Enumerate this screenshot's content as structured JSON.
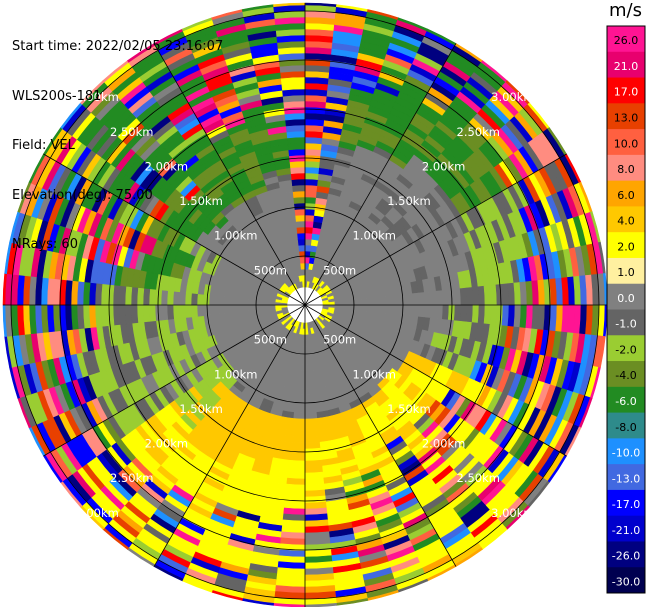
{
  "meta": {
    "start_time": "Start time: 2022/02/05 23:16:07",
    "instrument": "WLS200s-181",
    "field": "Field: VEL",
    "elevation": "Elevation(deg): 75.00",
    "nrays": "NRays: 60"
  },
  "colorbar": {
    "unit": "m/s",
    "ticks": [
      "26.0",
      "21.0",
      "17.0",
      "13.0",
      "10.0",
      "8.0",
      "6.0",
      "4.0",
      "2.0",
      "1.0",
      "0.0",
      "-1.0",
      "-2.0",
      "-4.0",
      "-6.0",
      "-8.0",
      "-10.0",
      "-13.0",
      "-17.0",
      "-21.0",
      "-26.0",
      "-30.0"
    ],
    "colors": [
      "#ff1493",
      "#e8006e",
      "#ff0000",
      "#e84000",
      "#ff6040",
      "#ff8c80",
      "#ffa500",
      "#ffc800",
      "#ffff00",
      "#fff0a0",
      "#808080",
      "#646464",
      "#9acd32",
      "#6b8e23",
      "#228b22",
      "#2e8b8b",
      "#1e90ff",
      "#4169e1",
      "#0000ff",
      "#0000cd",
      "#000080",
      "#000050"
    ]
  },
  "chart_data": {
    "type": "ppi",
    "field": "VEL",
    "nrays": 60,
    "elevation_deg": 75.0,
    "range_rings": [
      "500m",
      "1.00km",
      "1.50km",
      "2.00km",
      "2.50km",
      "3.00km"
    ],
    "range_ring_values_km": [
      0.5,
      1.0,
      1.5,
      2.0,
      2.5,
      3.0
    ],
    "colorbar_range": [
      -30,
      26
    ],
    "units": "m/s"
  }
}
